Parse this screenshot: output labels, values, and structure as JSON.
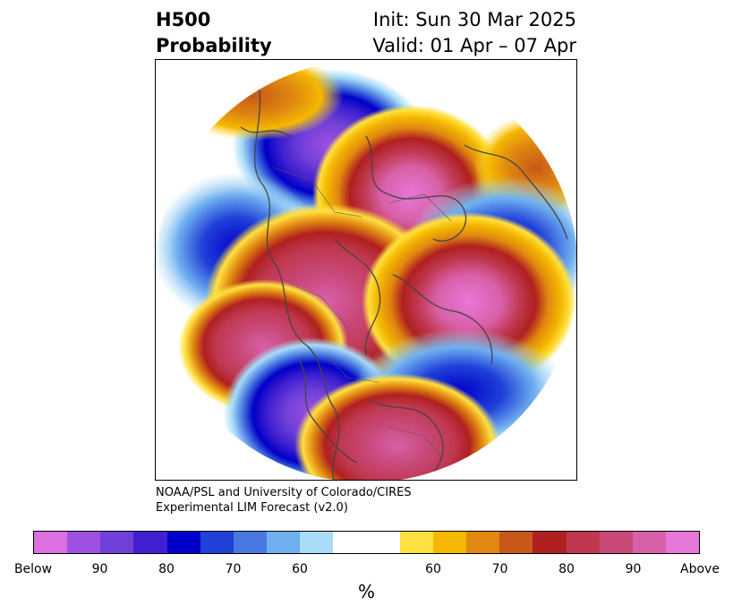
{
  "title": {
    "variable": "H500",
    "kind": "Probability",
    "init": "Init: Sun 30 Mar 2025",
    "valid": "Valid: 01 Apr – 07 Apr"
  },
  "credit": {
    "line1": "NOAA/PSL and University of Colorado/CIRES",
    "line2": "Experimental LIM Forecast (v2.0)"
  },
  "colorbar": {
    "unit": "%",
    "colors": [
      "#dc70e0",
      "#a050e0",
      "#7040d8",
      "#4020d0",
      "#0000c8",
      "#2040d8",
      "#4878e0",
      "#70b0f0",
      "#a8dcf8",
      "#ffffff",
      "#ffffff",
      "#ffe040",
      "#f5b800",
      "#e08810",
      "#c85818",
      "#b02020",
      "#c03850",
      "#c84878",
      "#d860a8",
      "#e878d8"
    ],
    "ticks": [
      {
        "label": "Below",
        "index": 0
      },
      {
        "label": "90",
        "index": 2
      },
      {
        "label": "80",
        "index": 4
      },
      {
        "label": "70",
        "index": 6
      },
      {
        "label": "60",
        "index": 8
      },
      {
        "label": "60",
        "index": 12
      },
      {
        "label": "70",
        "index": 14
      },
      {
        "label": "80",
        "index": 16
      },
      {
        "label": "90",
        "index": 18
      },
      {
        "label": "Above",
        "index": 20
      }
    ]
  },
  "map": {
    "projection": "north polar stereographic",
    "anomalies": [
      {
        "region": "Northeast Atlantic / Western Europe",
        "sign": "below"
      },
      {
        "region": "Arctic / Greenland",
        "sign": "above"
      },
      {
        "region": "Northwest Pacific",
        "sign": "below"
      },
      {
        "region": "Eastern Siberia / Bering",
        "sign": "above"
      },
      {
        "region": "Russia / Central Asia",
        "sign": "above"
      },
      {
        "region": "North Atlantic / Labrador Sea",
        "sign": "below"
      },
      {
        "region": "Eastern North America",
        "sign": "above"
      },
      {
        "region": "Western North America",
        "sign": "below"
      },
      {
        "region": "North Pacific",
        "sign": "below"
      },
      {
        "region": "Southern Europe / North Africa",
        "sign": "above"
      }
    ]
  }
}
